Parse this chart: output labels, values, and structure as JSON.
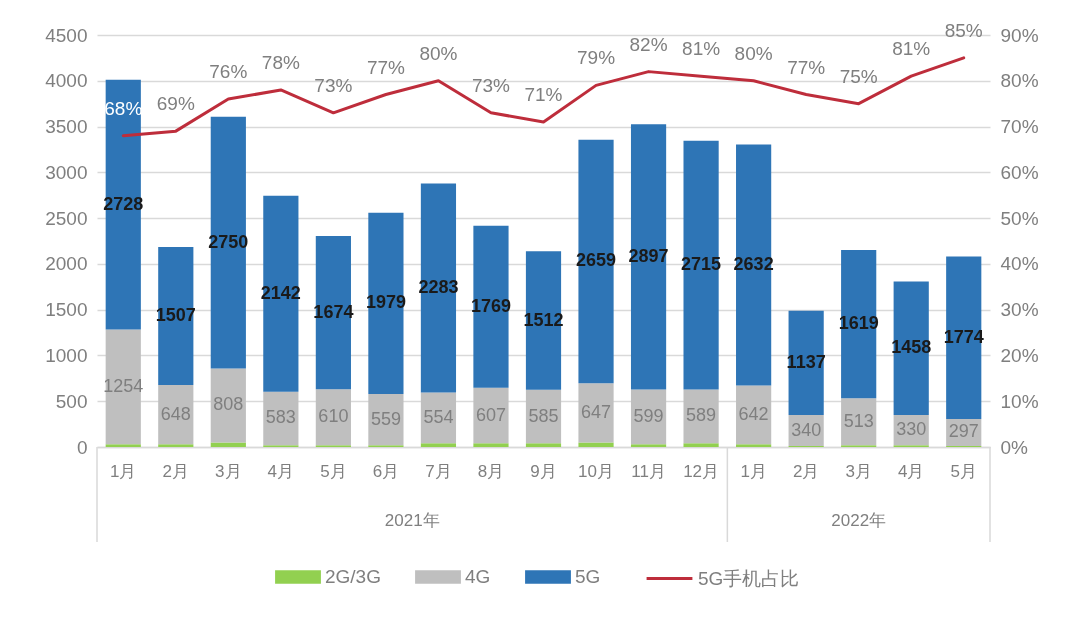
{
  "chart_data": {
    "type": "bar",
    "stacked": true,
    "categories": [
      "1月",
      "2月",
      "3月",
      "4月",
      "5月",
      "6月",
      "7月",
      "8月",
      "9月",
      "10月",
      "11月",
      "12月",
      "1月",
      "2月",
      "3月",
      "4月",
      "5月"
    ],
    "series": [
      {
        "name": "2G/3G",
        "color": "#92d050",
        "values": [
          30,
          30,
          50,
          20,
          20,
          20,
          40,
          40,
          40,
          50,
          30,
          40,
          30,
          10,
          20,
          20,
          10
        ]
      },
      {
        "name": "4G",
        "color": "#bfbfbf",
        "values": [
          1254,
          648,
          808,
          583,
          610,
          559,
          554,
          607,
          585,
          647,
          599,
          589,
          642,
          340,
          513,
          330,
          297
        ],
        "value_labels": [
          "1254",
          "648",
          "808",
          "583",
          "610",
          "559",
          "554",
          "607",
          "585",
          "647",
          "599",
          "589",
          "642",
          "340",
          "513",
          "330",
          "297"
        ]
      },
      {
        "name": "5G",
        "color": "#2e75b6",
        "values": [
          2728,
          1507,
          2750,
          2142,
          1674,
          1979,
          2283,
          1769,
          1512,
          2659,
          2897,
          2715,
          2632,
          1137,
          1619,
          1458,
          1774
        ],
        "value_labels": [
          "2728",
          "1507",
          "2750",
          "2142",
          "1674",
          "1979",
          "2283",
          "1769",
          "1512",
          "2659",
          "2897",
          "2715",
          "2632",
          "1137",
          "1619",
          "1458",
          "1774"
        ]
      },
      {
        "name": "5G手机占比",
        "type": "line",
        "axis": "y2",
        "color": "#be2d3b",
        "values": [
          68,
          69,
          76,
          78,
          73,
          77,
          80,
          73,
          71,
          79,
          82,
          81,
          80,
          77,
          75,
          81,
          85
        ],
        "value_labels": [
          "68%",
          "69%",
          "76%",
          "78%",
          "73%",
          "77%",
          "80%",
          "73%",
          "71%",
          "79%",
          "82%",
          "81%",
          "80%",
          "77%",
          "75%",
          "81%",
          "85%"
        ]
      }
    ],
    "ylim": [
      0,
      4500
    ],
    "yticks": [
      0,
      500,
      1000,
      1500,
      2000,
      2500,
      3000,
      3500,
      4000,
      4500
    ],
    "y2lim": [
      0,
      90
    ],
    "y2ticks": [
      {
        "value": 0,
        "label": "0%"
      },
      {
        "value": 10,
        "label": "10%"
      },
      {
        "value": 20,
        "label": "20%"
      },
      {
        "value": 30,
        "label": "30%"
      },
      {
        "value": 40,
        "label": "40%"
      },
      {
        "value": 50,
        "label": "50%"
      },
      {
        "value": 60,
        "label": "60%"
      },
      {
        "value": 70,
        "label": "70%"
      },
      {
        "value": 80,
        "label": "80%"
      },
      {
        "value": 90,
        "label": "90%"
      }
    ],
    "grid": "y",
    "legend": "bottom",
    "annotations": [
      "2021年",
      "2022年"
    ]
  }
}
